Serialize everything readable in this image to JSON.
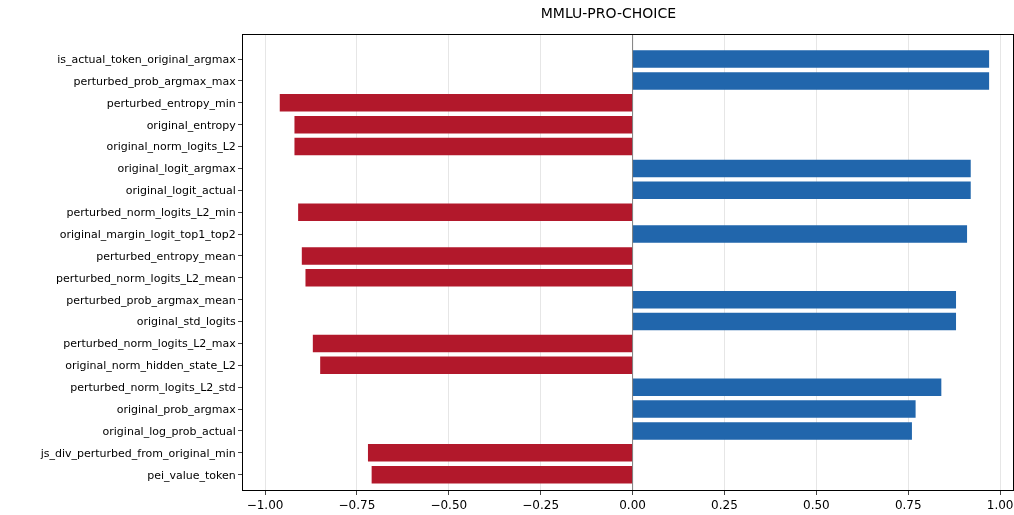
{
  "chart_data": {
    "type": "bar",
    "title": "MMLU-PRO-CHOICE",
    "orientation": "horizontal",
    "categories": [
      "is_actual_token_original_argmax",
      "perturbed_prob_argmax_max",
      "perturbed_entropy_min",
      "original_entropy",
      "original_norm_logits_L2",
      "original_logit_argmax",
      "original_logit_actual",
      "perturbed_norm_logits_L2_min",
      "original_margin_logit_top1_top2",
      "perturbed_entropy_mean",
      "perturbed_norm_logits_L2_mean",
      "perturbed_prob_argmax_mean",
      "original_std_logits",
      "perturbed_norm_logits_L2_max",
      "original_norm_hidden_state_L2",
      "perturbed_norm_logits_L2_std",
      "original_prob_argmax",
      "original_log_prob_actual",
      "js_div_perturbed_from_original_min",
      "pei_value_token"
    ],
    "values": [
      0.97,
      0.97,
      -0.96,
      -0.92,
      -0.92,
      0.92,
      0.92,
      -0.91,
      0.91,
      -0.9,
      -0.89,
      0.88,
      0.88,
      -0.87,
      -0.85,
      0.84,
      0.77,
      0.76,
      -0.72,
      -0.71
    ],
    "colors": [
      "#2166ac",
      "#2166ac",
      "#b2182b",
      "#b2182b",
      "#b2182b",
      "#2166ac",
      "#2166ac",
      "#b2182b",
      "#2166ac",
      "#b2182b",
      "#b2182b",
      "#2166ac",
      "#2166ac",
      "#b2182b",
      "#b2182b",
      "#2166ac",
      "#2166ac",
      "#2166ac",
      "#b2182b",
      "#b2182b"
    ],
    "xlim": [
      -1.06,
      1.035
    ],
    "xticks": [
      {
        "value": -1,
        "label": "−1.00"
      },
      {
        "value": -0.75,
        "label": "−0.75"
      },
      {
        "value": -0.5,
        "label": "−0.50"
      },
      {
        "value": -0.25,
        "label": "−0.25"
      },
      {
        "value": 0,
        "label": "0.00"
      },
      {
        "value": 0.25,
        "label": "0.25"
      },
      {
        "value": 0.5,
        "label": "0.50"
      },
      {
        "value": 0.75,
        "label": "0.75"
      },
      {
        "value": 1,
        "label": "1.00"
      }
    ],
    "grid": "x",
    "ref_lines": [
      {
        "axis": "x",
        "value": 0,
        "color": "#808080"
      }
    ]
  }
}
